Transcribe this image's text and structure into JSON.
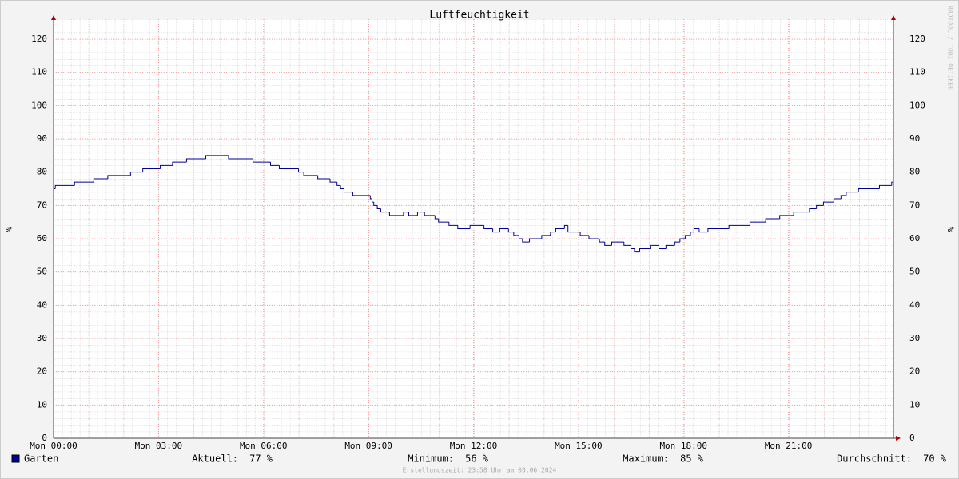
{
  "chart_data": {
    "type": "line",
    "title": "Luftfeuchtigkeit",
    "y_label": "%",
    "watermark": "RRDTOOL / TOBI OETIKER",
    "footer": "Erstellungszeit: 23:58 Uhr am 03.06.2024",
    "xlim": [
      0,
      24
    ],
    "ylim": [
      0,
      125
    ],
    "step": true,
    "grid": true,
    "xticks": [
      {
        "value": 0,
        "label": "Mon 00:00"
      },
      {
        "value": 3,
        "label": "Mon 03:00"
      },
      {
        "value": 6,
        "label": "Mon 06:00"
      },
      {
        "value": 9,
        "label": "Mon 09:00"
      },
      {
        "value": 12,
        "label": "Mon 12:00"
      },
      {
        "value": 15,
        "label": "Mon 15:00"
      },
      {
        "value": 18,
        "label": "Mon 18:00"
      },
      {
        "value": 21,
        "label": "Mon 21:00"
      }
    ],
    "yticks": [
      0,
      10,
      20,
      30,
      40,
      50,
      60,
      70,
      80,
      90,
      100,
      110,
      120
    ],
    "x": [
      0,
      0.05,
      0.6,
      1.15,
      1.55,
      2.2,
      2.55,
      3.05,
      3.4,
      3.8,
      4.35,
      5.0,
      5.7,
      6.2,
      6.45,
      7.0,
      7.15,
      7.55,
      7.9,
      8.1,
      8.2,
      8.3,
      8.55,
      9.05,
      9.1,
      9.15,
      9.25,
      9.35,
      9.6,
      10.0,
      10.15,
      10.4,
      10.6,
      10.9,
      11.0,
      11.3,
      11.55,
      11.9,
      12.3,
      12.55,
      12.75,
      13.0,
      13.15,
      13.3,
      13.4,
      13.6,
      13.95,
      14.2,
      14.35,
      14.6,
      14.7,
      15.05,
      15.3,
      15.6,
      15.75,
      15.95,
      16.3,
      16.5,
      16.6,
      16.75,
      17.05,
      17.3,
      17.5,
      17.75,
      17.9,
      18.05,
      18.2,
      18.3,
      18.45,
      18.7,
      19.3,
      19.9,
      20.35,
      20.75,
      21.15,
      21.6,
      21.8,
      22.0,
      22.3,
      22.5,
      22.65,
      23.0,
      23.6,
      23.95
    ],
    "series": [
      {
        "name": "Garten",
        "color": "#000096",
        "values": [
          75,
          76,
          77,
          78,
          79,
          80,
          81,
          82,
          83,
          84,
          85,
          84,
          83,
          82,
          81,
          80,
          79,
          78,
          77,
          76,
          75,
          74,
          73,
          72,
          71,
          70,
          69,
          68,
          67,
          68,
          67,
          68,
          67,
          66,
          65,
          64,
          63,
          64,
          63,
          62,
          63,
          62,
          61,
          60,
          59,
          60,
          61,
          62,
          63,
          64,
          62,
          61,
          60,
          59,
          58,
          59,
          58,
          57,
          56,
          57,
          58,
          57,
          58,
          59,
          60,
          61,
          62,
          63,
          62,
          63,
          64,
          65,
          66,
          67,
          68,
          69,
          70,
          71,
          72,
          73,
          74,
          75,
          76,
          77
        ]
      }
    ],
    "stats": [
      {
        "label": "Aktuell:",
        "text": "77 %"
      },
      {
        "label": "Minimum:",
        "text": "56 %"
      },
      {
        "label": "Maximum:",
        "text": "85 %"
      },
      {
        "label": "Durchschnitt:",
        "text": "70 %"
      }
    ]
  }
}
